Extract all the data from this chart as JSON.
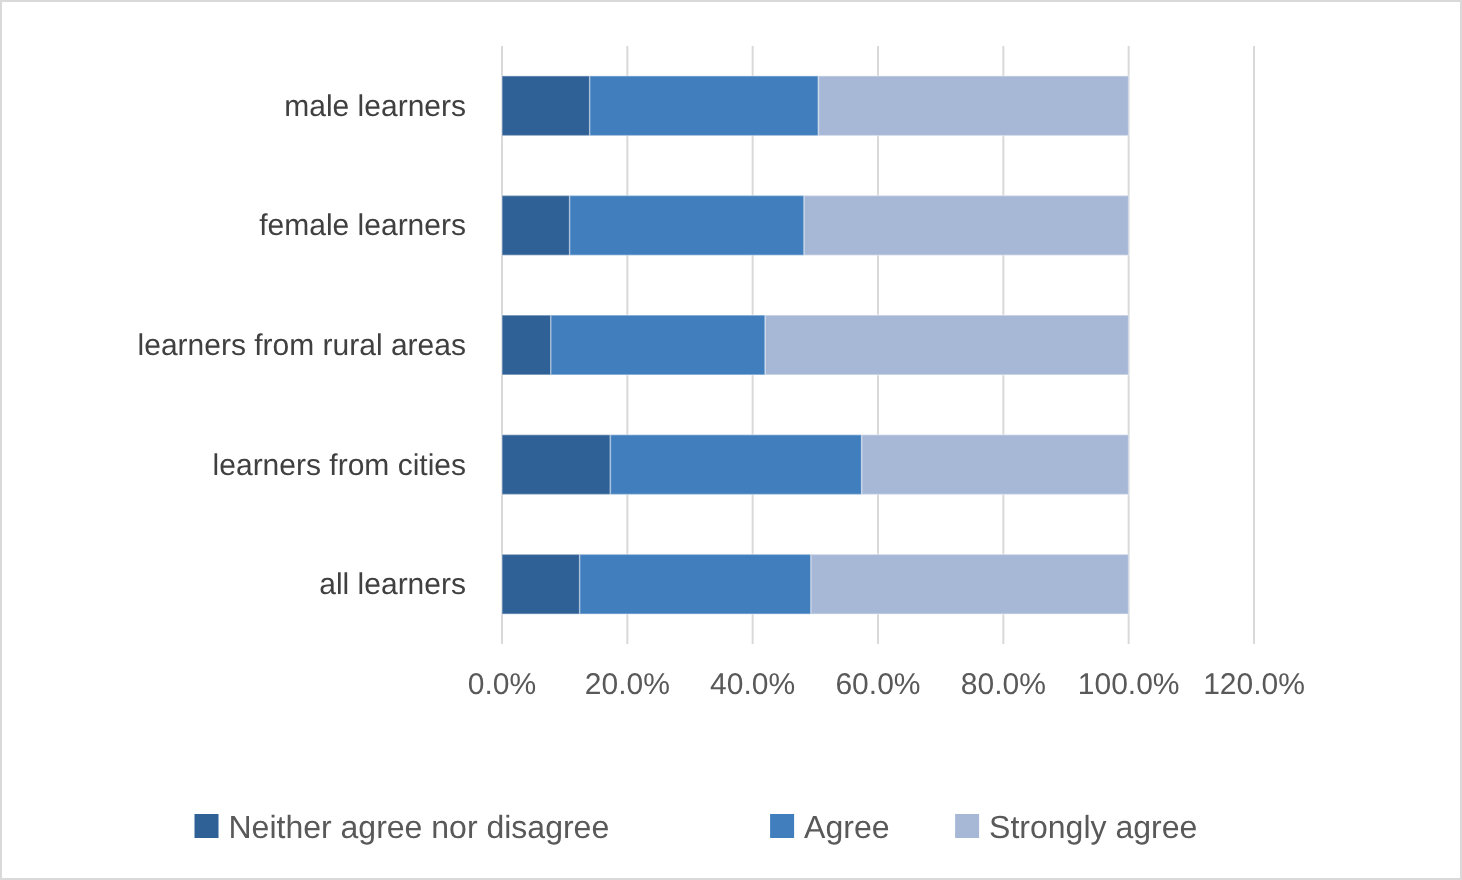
{
  "chart_data": {
    "type": "bar",
    "orientation": "horizontal",
    "stacked": true,
    "categories": [
      "male learners",
      "female learners",
      "learners from rural areas",
      "learners from cities",
      "all learners"
    ],
    "series": [
      {
        "name": "Neither agree nor disagree",
        "color": "#2f6096",
        "values": [
          0.14,
          0.108,
          0.078,
          0.173,
          0.124
        ]
      },
      {
        "name": "Agree",
        "color": "#407ebd",
        "values": [
          0.365,
          0.374,
          0.342,
          0.401,
          0.369
        ]
      },
      {
        "name": "Strongly agree",
        "color": "#a7b8d7",
        "values": [
          0.495,
          0.518,
          0.58,
          0.426,
          0.507
        ]
      }
    ],
    "xlim": [
      0,
      1.2
    ],
    "xticks": [
      {
        "value": 0,
        "label": "0.0%"
      },
      {
        "value": 0.2,
        "label": "20.0%"
      },
      {
        "value": 0.4,
        "label": "40.0%"
      },
      {
        "value": 0.6,
        "label": "60.0%"
      },
      {
        "value": 0.8,
        "label": "80.0%"
      },
      {
        "value": 1,
        "label": "100.0%"
      },
      {
        "value": 1.2,
        "label": "120.0%"
      }
    ],
    "grid": "x",
    "legend": "bottom"
  }
}
